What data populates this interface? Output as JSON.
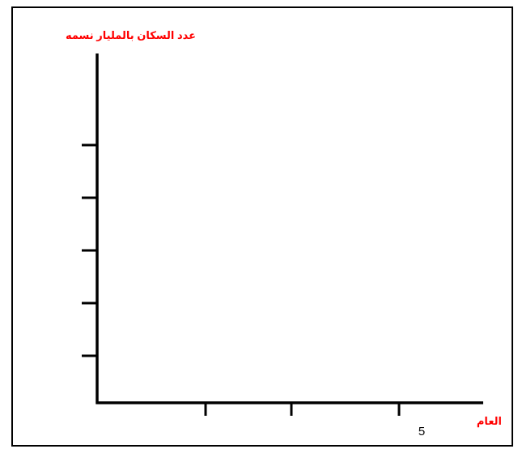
{
  "chart_data": {
    "type": "line",
    "title": "",
    "ylabel": "عدد السكان بالمليار نسمه",
    "xlabel": "العام",
    "y_tick_count": 5,
    "x_tick_count": 3,
    "x_tick_labels": [
      "",
      "",
      "5"
    ],
    "series": [],
    "grid": false
  },
  "colors": {
    "axis_title": "#ff0000",
    "axis_line": "#000000",
    "border": "#000000"
  }
}
